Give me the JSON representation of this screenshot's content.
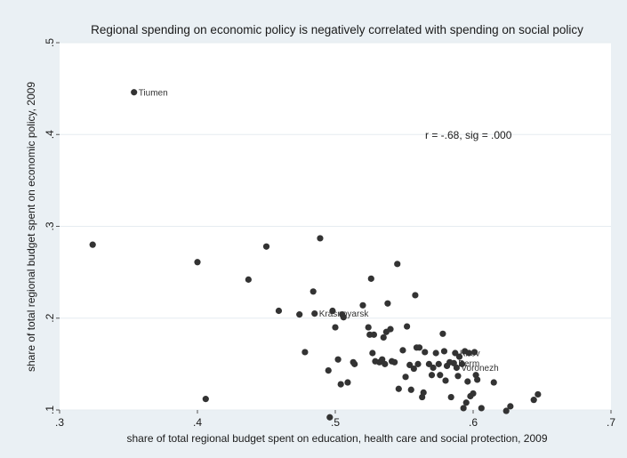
{
  "chart_data": {
    "type": "scatter",
    "title": "Regional spending on economic policy is negatively correlated with spending on social policy",
    "xlabel": "share of total regional budget spent on education, health care and social protection, 2009",
    "ylabel": "share of total regional budget spent on economic policy, 2009",
    "xlim": [
      0.3,
      0.7
    ],
    "ylim": [
      0.1,
      0.5
    ],
    "xticks": [
      ".3",
      ".4",
      ".5",
      ".6",
      ".7"
    ],
    "yticks": [
      ".1",
      ".2",
      ".3",
      ".4",
      ".5"
    ],
    "grid": true,
    "annotation": "r = -.68, sig = .000",
    "colors": {
      "background": "#eaf0f4",
      "plot_bg": "#ffffff",
      "marker": "#333333",
      "grid": "#e6ecf0"
    },
    "labeled_points": [
      {
        "label": "Tiumen",
        "x": 0.354,
        "y": 0.446
      },
      {
        "label": "Krasnoyarsk",
        "x": 0.485,
        "y": 0.205
      },
      {
        "label": "Kirov",
        "x": 0.587,
        "y": 0.162
      },
      {
        "label": "Perm",
        "x": 0.586,
        "y": 0.151
      },
      {
        "label": "Voronezh",
        "x": 0.588,
        "y": 0.146
      }
    ],
    "points": [
      [
        0.324,
        0.28
      ],
      [
        0.354,
        0.446
      ],
      [
        0.4,
        0.261
      ],
      [
        0.406,
        0.112
      ],
      [
        0.437,
        0.242
      ],
      [
        0.45,
        0.278
      ],
      [
        0.459,
        0.208
      ],
      [
        0.474,
        0.204
      ],
      [
        0.478,
        0.163
      ],
      [
        0.484,
        0.229
      ],
      [
        0.485,
        0.205
      ],
      [
        0.489,
        0.287
      ],
      [
        0.495,
        0.143
      ],
      [
        0.496,
        0.092
      ],
      [
        0.498,
        0.208
      ],
      [
        0.5,
        0.19
      ],
      [
        0.502,
        0.155
      ],
      [
        0.504,
        0.128
      ],
      [
        0.505,
        0.204
      ],
      [
        0.506,
        0.201
      ],
      [
        0.509,
        0.13
      ],
      [
        0.513,
        0.152
      ],
      [
        0.514,
        0.15
      ],
      [
        0.52,
        0.214
      ],
      [
        0.524,
        0.19
      ],
      [
        0.525,
        0.182
      ],
      [
        0.526,
        0.243
      ],
      [
        0.527,
        0.162
      ],
      [
        0.528,
        0.182
      ],
      [
        0.529,
        0.153
      ],
      [
        0.532,
        0.152
      ],
      [
        0.534,
        0.155
      ],
      [
        0.535,
        0.179
      ],
      [
        0.536,
        0.15
      ],
      [
        0.537,
        0.185
      ],
      [
        0.538,
        0.216
      ],
      [
        0.54,
        0.188
      ],
      [
        0.541,
        0.153
      ],
      [
        0.543,
        0.152
      ],
      [
        0.545,
        0.259
      ],
      [
        0.546,
        0.123
      ],
      [
        0.549,
        0.165
      ],
      [
        0.551,
        0.136
      ],
      [
        0.552,
        0.191
      ],
      [
        0.554,
        0.149
      ],
      [
        0.555,
        0.122
      ],
      [
        0.557,
        0.145
      ],
      [
        0.558,
        0.225
      ],
      [
        0.559,
        0.168
      ],
      [
        0.56,
        0.15
      ],
      [
        0.561,
        0.168
      ],
      [
        0.563,
        0.114
      ],
      [
        0.564,
        0.119
      ],
      [
        0.565,
        0.163
      ],
      [
        0.568,
        0.15
      ],
      [
        0.57,
        0.138
      ],
      [
        0.571,
        0.146
      ],
      [
        0.573,
        0.162
      ],
      [
        0.575,
        0.15
      ],
      [
        0.576,
        0.138
      ],
      [
        0.578,
        0.183
      ],
      [
        0.579,
        0.164
      ],
      [
        0.58,
        0.132
      ],
      [
        0.581,
        0.148
      ],
      [
        0.583,
        0.152
      ],
      [
        0.584,
        0.114
      ],
      [
        0.586,
        0.151
      ],
      [
        0.587,
        0.162
      ],
      [
        0.588,
        0.146
      ],
      [
        0.589,
        0.137
      ],
      [
        0.59,
        0.158
      ],
      [
        0.592,
        0.15
      ],
      [
        0.593,
        0.102
      ],
      [
        0.594,
        0.164
      ],
      [
        0.595,
        0.108
      ],
      [
        0.596,
        0.131
      ],
      [
        0.597,
        0.162
      ],
      [
        0.598,
        0.115
      ],
      [
        0.6,
        0.118
      ],
      [
        0.601,
        0.163
      ],
      [
        0.602,
        0.138
      ],
      [
        0.603,
        0.133
      ],
      [
        0.606,
        0.102
      ],
      [
        0.615,
        0.13
      ],
      [
        0.624,
        0.099
      ],
      [
        0.627,
        0.104
      ],
      [
        0.644,
        0.111
      ],
      [
        0.647,
        0.117
      ]
    ]
  }
}
